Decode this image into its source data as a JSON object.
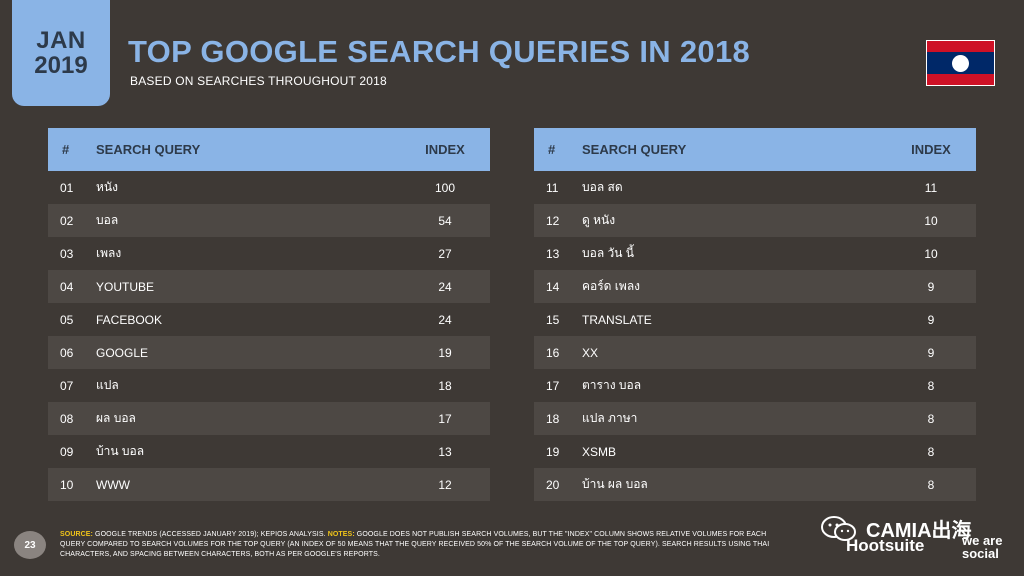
{
  "date": {
    "month": "JAN",
    "year": "2019"
  },
  "header": {
    "title": "TOP GOOGLE SEARCH QUERIES IN 2018",
    "subtitle": "BASED ON SEARCHES THROUGHOUT 2018"
  },
  "flag": {
    "icon": "laos-flag-icon",
    "colors": {
      "red": "#ce1126",
      "blue": "#002868",
      "white": "#ffffff"
    }
  },
  "table_headers": {
    "num": "#",
    "query": "SEARCH QUERY",
    "index": "INDEX"
  },
  "left_rows": [
    {
      "num": "01",
      "query": "หนัง",
      "index": "100"
    },
    {
      "num": "02",
      "query": "บอล",
      "index": "54"
    },
    {
      "num": "03",
      "query": "เพลง",
      "index": "27"
    },
    {
      "num": "04",
      "query": "YOUTUBE",
      "index": "24"
    },
    {
      "num": "05",
      "query": "FACEBOOK",
      "index": "24"
    },
    {
      "num": "06",
      "query": "GOOGLE",
      "index": "19"
    },
    {
      "num": "07",
      "query": "แปล",
      "index": "18"
    },
    {
      "num": "08",
      "query": "ผล บอล",
      "index": "17"
    },
    {
      "num": "09",
      "query": "บ้าน บอล",
      "index": "13"
    },
    {
      "num": "10",
      "query": "WWW",
      "index": "12"
    }
  ],
  "right_rows": [
    {
      "num": "11",
      "query": "บอล สด",
      "index": "11"
    },
    {
      "num": "12",
      "query": "ดู หนัง",
      "index": "10"
    },
    {
      "num": "13",
      "query": "บอล วัน นี้",
      "index": "10"
    },
    {
      "num": "14",
      "query": "คอร์ด เพลง",
      "index": "9"
    },
    {
      "num": "15",
      "query": "TRANSLATE",
      "index": "9"
    },
    {
      "num": "16",
      "query": "XX",
      "index": "9"
    },
    {
      "num": "17",
      "query": "ตาราง บอล",
      "index": "8"
    },
    {
      "num": "18",
      "query": "แปล ภาษา",
      "index": "8"
    },
    {
      "num": "19",
      "query": "XSMB",
      "index": "8"
    },
    {
      "num": "20",
      "query": "บ้าน ผล บอล",
      "index": "8"
    }
  ],
  "footer": {
    "page_number": "23",
    "source_label": "SOURCE:",
    "source_text": " GOOGLE TRENDS (ACCESSED JANUARY 2019); KEPIOS ANALYSIS. ",
    "notes_label": "NOTES:",
    "notes_text": " GOOGLE DOES NOT PUBLISH SEARCH VOLUMES, BUT THE \"INDEX\" COLUMN SHOWS RELATIVE VOLUMES FOR EACH QUERY COMPARED TO SEARCH VOLUMES FOR THE TOP QUERY (AN INDEX OF 50 MEANS THAT THE QUERY RECEIVED 50% OF THE SEARCH VOLUME OF THE TOP QUERY). SEARCH RESULTS USING THAI CHARACTERS, AND SPACING BETWEEN CHARACTERS, BOTH AS PER GOOGLE'S REPORTS.",
    "watermark": "CAMIA出海",
    "brand_hootsuite": "Hootsuite",
    "brand_wearesocial": "we are social"
  },
  "colors": {
    "accent": "#8ab4e6",
    "background": "#3e3935",
    "row_shade": "#4d4844",
    "note_key": "#f0c419"
  }
}
